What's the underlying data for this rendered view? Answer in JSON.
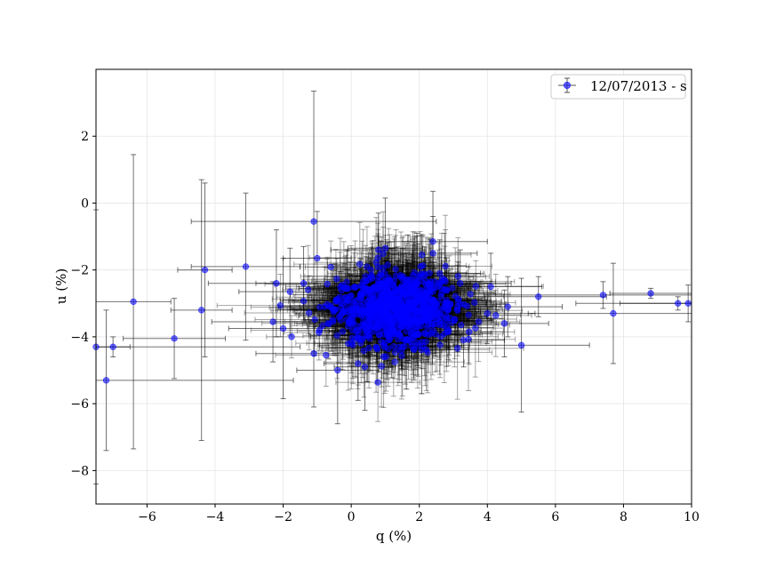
{
  "chart_data": {
    "type": "scatter",
    "title": "",
    "xlabel": "q (%)",
    "ylabel": "u (%)",
    "xlim": [
      -7.5,
      10
    ],
    "ylim": [
      -9,
      4
    ],
    "xticks": [
      -6,
      -4,
      -2,
      0,
      2,
      4,
      6,
      8,
      10
    ],
    "yticks": [
      2,
      0,
      -2,
      -4,
      -6,
      -8
    ],
    "xtick_labels": [
      "−6",
      "−4",
      "−2",
      "0",
      "2",
      "4",
      "6",
      "8",
      "10"
    ],
    "ytick_labels": [
      "2",
      "0",
      "−2",
      "−4",
      "−6",
      "−8"
    ],
    "grid": true,
    "legend_position": "top-right",
    "colors": {
      "marker": "#0000ff",
      "errorbar": "#000000",
      "grid": "#e6e6e6"
    },
    "series": [
      {
        "name": "12/07/2013 - s",
        "points": [
          {
            "x": -1.1,
            "y": -0.55,
            "xerr": 3.6,
            "yerr": 3.9
          },
          {
            "x": -6.4,
            "y": -2.95,
            "xerr": 1.1,
            "yerr": 4.4
          },
          {
            "x": -4.3,
            "y": -2.0,
            "xerr": 0.8,
            "yerr": 2.6
          },
          {
            "x": -4.4,
            "y": -3.2,
            "xerr": 0.9,
            "yerr": 3.9
          },
          {
            "x": -3.1,
            "y": -1.9,
            "xerr": 1.6,
            "yerr": 2.2
          },
          {
            "x": -7.2,
            "y": -5.3,
            "xerr": 5.5,
            "yerr": 2.1
          },
          {
            "x": -7.0,
            "y": -4.3,
            "xerr": 0.5,
            "yerr": 0.3
          },
          {
            "x": -7.5,
            "y": -4.3,
            "xerr": 6.0,
            "yerr": 4.1
          },
          {
            "x": -5.2,
            "y": -4.05,
            "xerr": 1.5,
            "yerr": 1.2
          },
          {
            "x": -2.3,
            "y": -3.55,
            "xerr": 1.8,
            "yerr": 1.2
          },
          {
            "x": -2.2,
            "y": -2.4,
            "xerr": 2.0,
            "yerr": 1.6
          },
          {
            "x": -2.0,
            "y": -3.75,
            "xerr": 1.6,
            "yerr": 2.1
          },
          {
            "x": -1.8,
            "y": -2.65,
            "xerr": 1.5,
            "yerr": 1.3
          },
          {
            "x": -1.4,
            "y": -2.4,
            "xerr": 1.4,
            "yerr": 1.1
          },
          {
            "x": -1.1,
            "y": -4.5,
            "xerr": 1.7,
            "yerr": 1.6
          },
          {
            "x": -1.0,
            "y": -1.65,
            "xerr": 1.0,
            "yerr": 1.4
          },
          {
            "x": -0.4,
            "y": -5.0,
            "xerr": 1.2,
            "yerr": 1.6
          },
          {
            "x": 0.2,
            "y": -4.8,
            "xerr": 1.0,
            "yerr": 1.1
          },
          {
            "x": 0.4,
            "y": -4.9,
            "xerr": 0.9,
            "yerr": 1.3
          },
          {
            "x": 0.8,
            "y": -1.4,
            "xerr": 1.4,
            "yerr": 1.1
          },
          {
            "x": 1.0,
            "y": -1.35,
            "xerr": 1.1,
            "yerr": 1.5
          },
          {
            "x": 2.4,
            "y": -1.15,
            "xerr": 1.6,
            "yerr": 1.5
          },
          {
            "x": 2.4,
            "y": -1.5,
            "xerr": 1.3,
            "yerr": 1.1
          },
          {
            "x": 2.6,
            "y": -2.1,
            "xerr": 1.2,
            "yerr": 1.0
          },
          {
            "x": 3.2,
            "y": -2.4,
            "xerr": 1.5,
            "yerr": 1.0
          },
          {
            "x": 3.3,
            "y": -4.1,
            "xerr": 1.2,
            "yerr": 0.8
          },
          {
            "x": 4.1,
            "y": -2.5,
            "xerr": 1.5,
            "yerr": 1.0
          },
          {
            "x": 4.0,
            "y": -3.3,
            "xerr": 1.4,
            "yerr": 0.9
          },
          {
            "x": 4.6,
            "y": -3.1,
            "xerr": 1.6,
            "yerr": 0.9
          },
          {
            "x": 4.5,
            "y": -3.6,
            "xerr": 1.3,
            "yerr": 1.0
          },
          {
            "x": 5.0,
            "y": -4.25,
            "xerr": 2.0,
            "yerr": 2.0
          },
          {
            "x": 5.5,
            "y": -2.8,
            "xerr": 2.0,
            "yerr": 0.6
          },
          {
            "x": 7.4,
            "y": -2.75,
            "xerr": 3.5,
            "yerr": 0.4
          },
          {
            "x": 7.7,
            "y": -3.3,
            "xerr": 2.5,
            "yerr": 1.5
          },
          {
            "x": 8.8,
            "y": -2.7,
            "xerr": 1.2,
            "yerr": 0.15
          },
          {
            "x": 9.6,
            "y": -3.0,
            "xerr": 3.0,
            "yerr": 0.2
          },
          {
            "x": 9.9,
            "y": -3.0,
            "xerr": 2.0,
            "yerr": 0.55
          }
        ],
        "cluster": {
          "center_x": 1.3,
          "center_y": -3.15,
          "spread_x": 0.9,
          "spread_y": 0.55,
          "count": 900,
          "typical_xerr": 1.6,
          "typical_yerr": 1.2
        }
      }
    ]
  }
}
